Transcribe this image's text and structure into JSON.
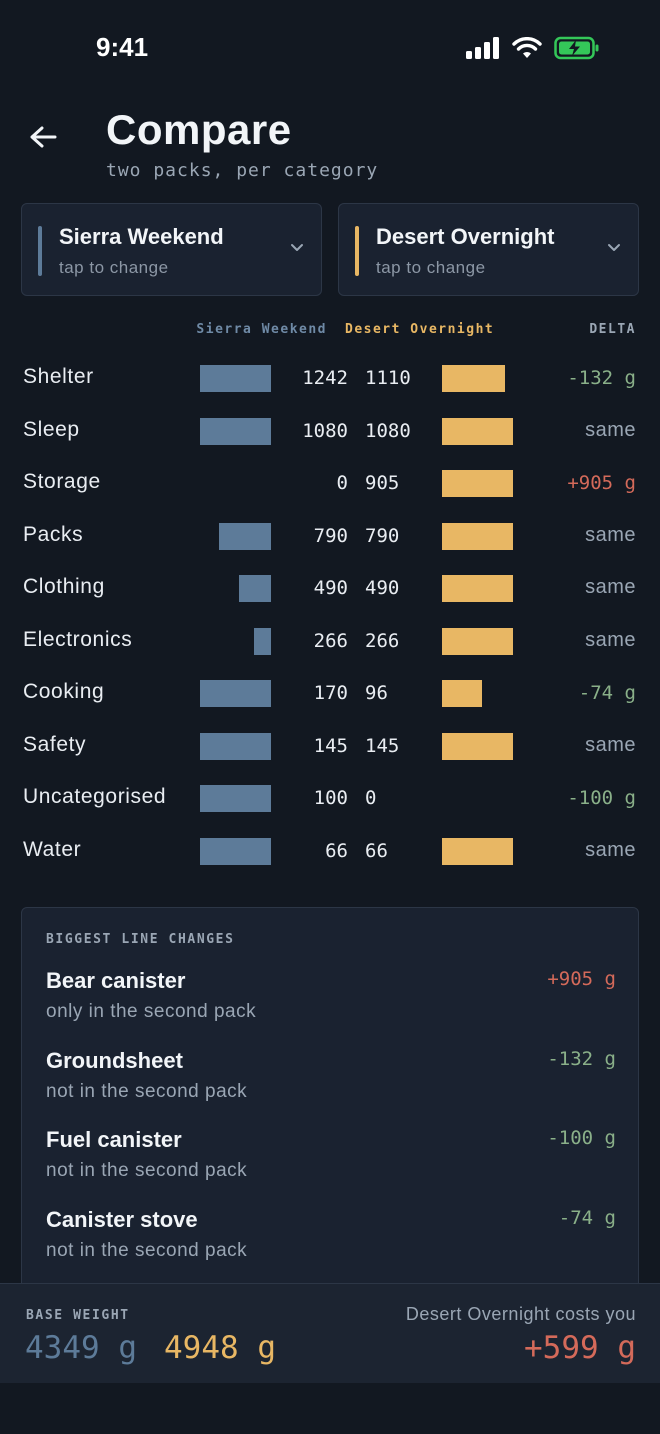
{
  "status": {
    "time": "9:41"
  },
  "header": {
    "title": "Compare",
    "subtitle": "two packs, per category"
  },
  "packs": {
    "a": {
      "name": "Sierra Weekend",
      "hint": "tap to change",
      "color": "#5d7b99"
    },
    "b": {
      "name": "Desert Overnight",
      "hint": "tap to change",
      "color": "#e8b764"
    }
  },
  "columns": {
    "a": "Sierra Weekend",
    "b": "Desert Overnight",
    "delta": "DELTA"
  },
  "rows": [
    {
      "label": "Shelter",
      "a": "1242",
      "b": "1110",
      "a_val": 1242,
      "b_val": 1110,
      "delta": "-132 g",
      "kind": "neg"
    },
    {
      "label": "Sleep",
      "a": "1080",
      "b": "1080",
      "a_val": 1080,
      "b_val": 1080,
      "delta": "same",
      "kind": "same"
    },
    {
      "label": "Storage",
      "a": "0",
      "b": "905",
      "a_val": 0,
      "b_val": 905,
      "delta": "+905 g",
      "kind": "pos"
    },
    {
      "label": "Packs",
      "a": "790",
      "b": "790",
      "a_val": 790,
      "b_val": 790,
      "delta": "same",
      "kind": "same"
    },
    {
      "label": "Clothing",
      "a": "490",
      "b": "490",
      "a_val": 490,
      "b_val": 490,
      "delta": "same",
      "kind": "same"
    },
    {
      "label": "Electronics",
      "a": "266",
      "b": "266",
      "a_val": 266,
      "b_val": 266,
      "delta": "same",
      "kind": "same"
    },
    {
      "label": "Cooking",
      "a": "170",
      "b": "96",
      "a_val": 170,
      "b_val": 96,
      "delta": "-74 g",
      "kind": "neg"
    },
    {
      "label": "Safety",
      "a": "145",
      "b": "145",
      "a_val": 145,
      "b_val": 145,
      "delta": "same",
      "kind": "same"
    },
    {
      "label": "Uncategorised",
      "a": "100",
      "b": "0",
      "a_val": 100,
      "b_val": 0,
      "delta": "-100 g",
      "kind": "neg"
    },
    {
      "label": "Water",
      "a": "66",
      "b": "66",
      "a_val": 66,
      "b_val": 66,
      "delta": "same",
      "kind": "same"
    }
  ],
  "changes": {
    "title": "BIGGEST LINE CHANGES",
    "items": [
      {
        "name": "Bear canister",
        "note": "only in the second pack",
        "delta": "+905 g",
        "kind": "pos"
      },
      {
        "name": "Groundsheet",
        "note": "not in the second pack",
        "delta": "-132 g",
        "kind": "neg"
      },
      {
        "name": "Fuel canister",
        "note": "not in the second pack",
        "delta": "-100 g",
        "kind": "neg"
      },
      {
        "name": "Canister stove",
        "note": "not in the second pack",
        "delta": "-74 g",
        "kind": "neg"
      }
    ]
  },
  "footer": {
    "label": "BASE WEIGHT",
    "a_total": "4349 g",
    "b_total": "4948 g",
    "cost_label": "Desert Overnight costs you",
    "cost": "+599 g"
  },
  "colors": {
    "neg": "#8ab089",
    "pos": "#d46a5a",
    "same": "#9aa6b4"
  }
}
